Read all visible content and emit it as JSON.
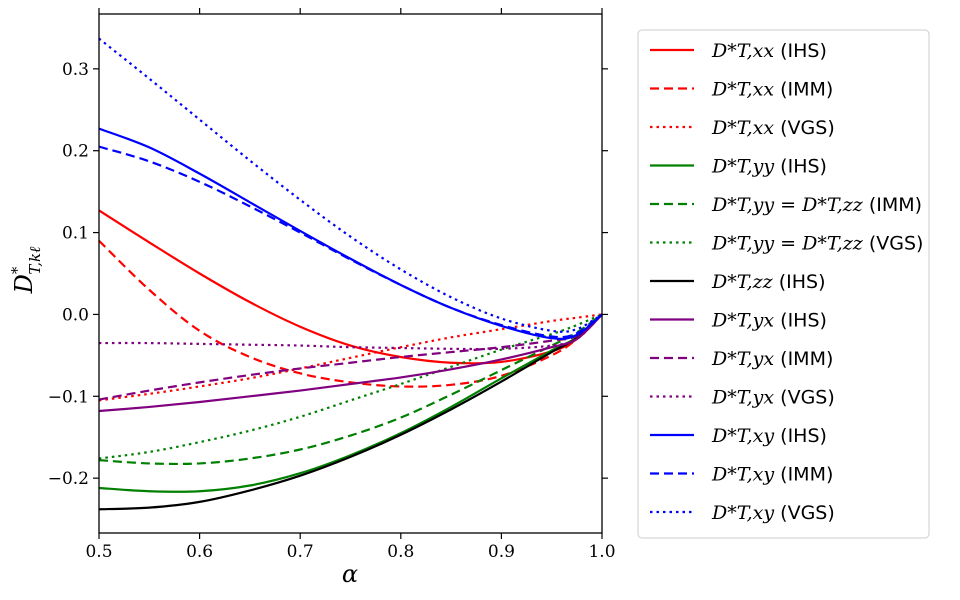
{
  "chart_data": {
    "type": "line",
    "xlabel": "α",
    "ylabel": "D*_{T,kℓ}",
    "xlim": [
      0.5,
      1.0
    ],
    "ylim": [
      -0.267,
      0.367
    ],
    "xticks": [
      0.5,
      0.6,
      0.7,
      0.8,
      0.9,
      1.0
    ],
    "xtick_labels": [
      "0.5",
      "0.6",
      "0.7",
      "0.8",
      "0.9",
      "1.0"
    ],
    "yticks": [
      -0.2,
      -0.1,
      0.0,
      0.1,
      0.2,
      0.3
    ],
    "ytick_labels": [
      "−0.2",
      "−0.1",
      "0.0",
      "0.1",
      "0.2",
      "0.3"
    ],
    "grid": false,
    "legend_position": "outside-right",
    "x": [
      0.5,
      0.55,
      0.6,
      0.65,
      0.7,
      0.75,
      0.8,
      0.85,
      0.9,
      0.95,
      0.975,
      1.0
    ],
    "series": [
      {
        "name": "D*_{T,xx} (IHS)",
        "math": "D*T,xx",
        "method": "(IHS)",
        "color": "#ff0000",
        "dash": "solid",
        "values": [
          0.127,
          0.088,
          0.05,
          0.015,
          -0.015,
          -0.038,
          -0.052,
          -0.059,
          -0.058,
          -0.045,
          -0.03,
          0.0
        ]
      },
      {
        "name": "D*_{T,xx} (IMM)",
        "math": "D*T,xx",
        "method": "(IMM)",
        "color": "#ff0000",
        "dash": "dashed",
        "values": [
          0.09,
          0.03,
          -0.02,
          -0.052,
          -0.072,
          -0.083,
          -0.088,
          -0.086,
          -0.075,
          -0.05,
          -0.03,
          0.0
        ]
      },
      {
        "name": "D*_{T,xx} (VGS)",
        "math": "D*T,xx",
        "method": "(VGS)",
        "color": "#ff0000",
        "dash": "dotted",
        "values": [
          -0.105,
          -0.097,
          -0.088,
          -0.078,
          -0.066,
          -0.053,
          -0.04,
          -0.028,
          -0.018,
          -0.008,
          -0.004,
          0.0
        ]
      },
      {
        "name": "D*_{T,yy} (IHS)",
        "math": "D*T,yy",
        "method": "(IHS)",
        "color": "#008000",
        "dash": "solid",
        "values": [
          -0.212,
          -0.216,
          -0.216,
          -0.209,
          -0.194,
          -0.172,
          -0.145,
          -0.113,
          -0.078,
          -0.044,
          -0.028,
          0.0
        ]
      },
      {
        "name": "D*_{T,yy} = D*_{T,zz} (IMM)",
        "math": "D*T,yy = D*T,zz",
        "method": "(IMM)",
        "color": "#008000",
        "dash": "dashed",
        "values": [
          -0.178,
          -0.182,
          -0.182,
          -0.176,
          -0.165,
          -0.148,
          -0.126,
          -0.098,
          -0.068,
          -0.038,
          -0.022,
          0.0
        ]
      },
      {
        "name": "D*_{T,yy} = D*_{T,zz} (VGS)",
        "math": "D*T,yy = D*T,zz",
        "method": "(VGS)",
        "color": "#008000",
        "dash": "dotted",
        "values": [
          -0.176,
          -0.168,
          -0.156,
          -0.142,
          -0.125,
          -0.105,
          -0.085,
          -0.064,
          -0.043,
          -0.024,
          -0.013,
          0.0
        ]
      },
      {
        "name": "D*_{T,zz} (IHS)",
        "math": "D*T,zz",
        "method": "(IHS)",
        "color": "#000000",
        "dash": "solid",
        "values": [
          -0.238,
          -0.236,
          -0.229,
          -0.215,
          -0.197,
          -0.174,
          -0.147,
          -0.116,
          -0.082,
          -0.046,
          -0.029,
          0.0
        ]
      },
      {
        "name": "D*_{T,yx} (IHS)",
        "math": "D*T,yx",
        "method": "(IHS)",
        "color": "#800080",
        "dash": "solid",
        "values": [
          -0.118,
          -0.113,
          -0.107,
          -0.1,
          -0.093,
          -0.085,
          -0.077,
          -0.067,
          -0.055,
          -0.04,
          -0.03,
          0.0
        ]
      },
      {
        "name": "D*_{T,yx} (IMM)",
        "math": "D*T,yx",
        "method": "(IMM)",
        "color": "#800080",
        "dash": "dashed",
        "values": [
          -0.104,
          -0.093,
          -0.083,
          -0.074,
          -0.066,
          -0.059,
          -0.052,
          -0.046,
          -0.04,
          -0.032,
          -0.026,
          0.0
        ]
      },
      {
        "name": "D*_{T,yx} (VGS)",
        "math": "D*T,yx",
        "method": "(VGS)",
        "color": "#800080",
        "dash": "dotted",
        "values": [
          -0.035,
          -0.035,
          -0.036,
          -0.037,
          -0.038,
          -0.04,
          -0.041,
          -0.042,
          -0.042,
          -0.038,
          -0.03,
          0.0
        ]
      },
      {
        "name": "D*_{T,xy} (IHS)",
        "math": "D*T,xy",
        "method": "(IHS)",
        "color": "#0000ff",
        "dash": "solid",
        "values": [
          0.227,
          0.204,
          0.172,
          0.137,
          0.102,
          0.068,
          0.036,
          0.008,
          -0.014,
          -0.029,
          -0.025,
          0.0
        ]
      },
      {
        "name": "D*_{T,xy} (IMM)",
        "math": "D*T,xy",
        "method": "(IMM)",
        "color": "#0000ff",
        "dash": "dashed",
        "values": [
          0.205,
          0.187,
          0.162,
          0.132,
          0.1,
          0.067,
          0.036,
          0.008,
          -0.013,
          -0.027,
          -0.023,
          0.0
        ]
      },
      {
        "name": "D*_{T,xy} (VGS)",
        "math": "D*T,xy",
        "method": "(VGS)",
        "color": "#0000ff",
        "dash": "dotted",
        "values": [
          0.337,
          0.288,
          0.238,
          0.188,
          0.14,
          0.095,
          0.055,
          0.021,
          -0.005,
          -0.02,
          -0.018,
          0.0
        ]
      }
    ]
  }
}
